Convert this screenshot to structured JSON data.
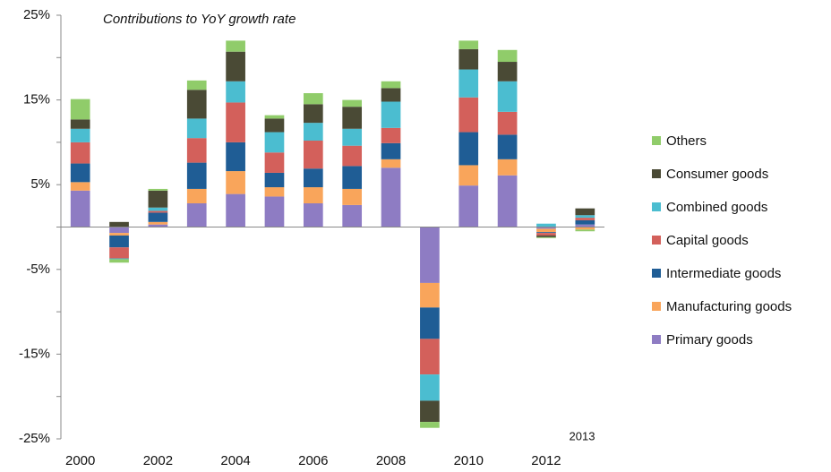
{
  "chart_data": {
    "type": "stacked_bar",
    "title": "Contributions to  YoY growth rate",
    "annotation": "2013",
    "categories": [
      "2000",
      null,
      "2002",
      null,
      "2004",
      null,
      "2006",
      null,
      "2008",
      null,
      "2010",
      null,
      "2012",
      null
    ],
    "series": [
      {
        "name": "Primary goods",
        "color": "#8e7cc3",
        "values": [
          4.3,
          -0.7,
          0.3,
          2.8,
          3.9,
          3.6,
          2.8,
          2.6,
          7.0,
          -6.6,
          4.9,
          6.1,
          -0.2,
          0.3
        ]
      },
      {
        "name": "Manufacturing goods",
        "color": "#f9a55b",
        "values": [
          1.0,
          -0.3,
          0.3,
          1.7,
          2.7,
          1.1,
          1.9,
          1.9,
          1.0,
          -2.9,
          2.4,
          1.9,
          -0.4,
          -0.3
        ]
      },
      {
        "name": "Intermediate goods",
        "color": "#1f5d95",
        "values": [
          2.2,
          -1.4,
          1.1,
          3.1,
          3.4,
          1.7,
          2.2,
          2.7,
          1.9,
          -3.7,
          3.9,
          2.9,
          -0.1,
          0.5
        ]
      },
      {
        "name": "Capital goods",
        "color": "#d3605b",
        "values": [
          2.5,
          -1.3,
          0.2,
          2.9,
          4.7,
          2.4,
          3.3,
          2.4,
          1.8,
          -4.2,
          4.1,
          2.7,
          -0.3,
          0.3
        ]
      },
      {
        "name": "Combined goods",
        "color": "#4bbdd0",
        "values": [
          1.6,
          -0.1,
          0.4,
          2.3,
          2.5,
          2.4,
          2.1,
          2.0,
          3.1,
          -3.1,
          3.3,
          3.6,
          0.4,
          0.3
        ]
      },
      {
        "name": "Consumer goods",
        "color": "#4a4a35",
        "values": [
          1.1,
          0.6,
          2.0,
          3.4,
          3.5,
          1.6,
          2.2,
          2.6,
          1.6,
          -2.5,
          2.4,
          2.3,
          -0.2,
          0.8
        ]
      },
      {
        "name": "Others",
        "color": "#90cc6a",
        "values": [
          2.4,
          -0.4,
          0.2,
          1.1,
          1.3,
          0.4,
          1.3,
          0.8,
          0.8,
          -0.7,
          1.0,
          1.4,
          -0.1,
          -0.2
        ]
      }
    ],
    "ylim": [
      -25,
      25
    ],
    "yticks": [
      {
        "value": 25,
        "label": "25%"
      },
      {
        "value": 15,
        "label": "15%"
      },
      {
        "value": 5,
        "label": "5%"
      },
      {
        "value": -5,
        "label": "-5%"
      },
      {
        "value": -15,
        "label": "-15%"
      },
      {
        "value": -25,
        "label": "-25%"
      }
    ],
    "yminor_ticks": [
      20,
      10,
      0,
      -10,
      -20
    ],
    "legend": "right"
  }
}
